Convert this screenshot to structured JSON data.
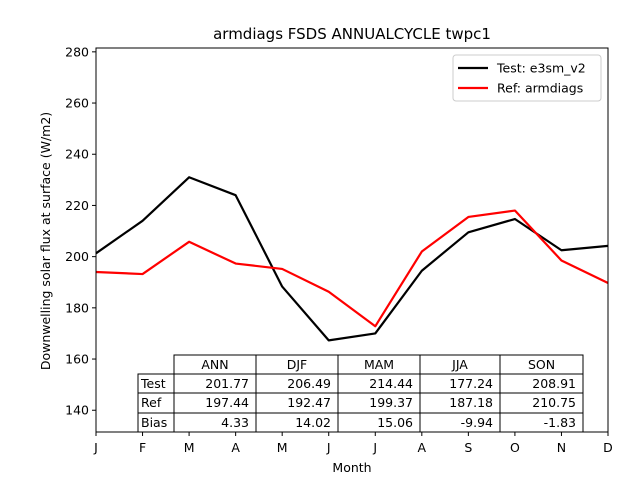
{
  "chart_data": {
    "type": "line",
    "title": "armdiags FSDS ANNUALCYCLE twpc1",
    "xlabel": "Month",
    "ylabel": "Downwelling solar flux at surface (W/m2)",
    "categories": [
      "J",
      "F",
      "M",
      "A",
      "M",
      "J",
      "J",
      "A",
      "S",
      "O",
      "N",
      "D"
    ],
    "ylim": [
      131.5,
      281.5
    ],
    "yticks": [
      140,
      160,
      180,
      200,
      220,
      240,
      260,
      280
    ],
    "series": [
      {
        "name": "Test: e3sm_v2",
        "color": "#000000",
        "values": [
          201.3,
          214.0,
          231.0,
          224.0,
          188.3,
          167.3,
          170.0,
          194.5,
          209.5,
          214.7,
          202.5,
          204.2
        ]
      },
      {
        "name": "Ref: armdiags",
        "color": "#ff0000",
        "values": [
          194.0,
          193.2,
          205.8,
          197.3,
          195.2,
          186.3,
          172.8,
          202.0,
          215.5,
          218.0,
          198.5,
          189.7
        ]
      }
    ],
    "legend_position": "top-right",
    "grid": false,
    "table": {
      "columns": [
        "ANN",
        "DJF",
        "MAM",
        "JJA",
        "SON"
      ],
      "rows": [
        {
          "label": "Test",
          "values": [
            "201.77",
            "206.49",
            "214.44",
            "177.24",
            "208.91"
          ]
        },
        {
          "label": "Ref",
          "values": [
            "197.44",
            "192.47",
            "199.37",
            "187.18",
            "210.75"
          ]
        },
        {
          "label": "Bias",
          "values": [
            "4.33",
            "14.02",
            "15.06",
            "-9.94",
            "-1.83"
          ]
        }
      ]
    }
  }
}
